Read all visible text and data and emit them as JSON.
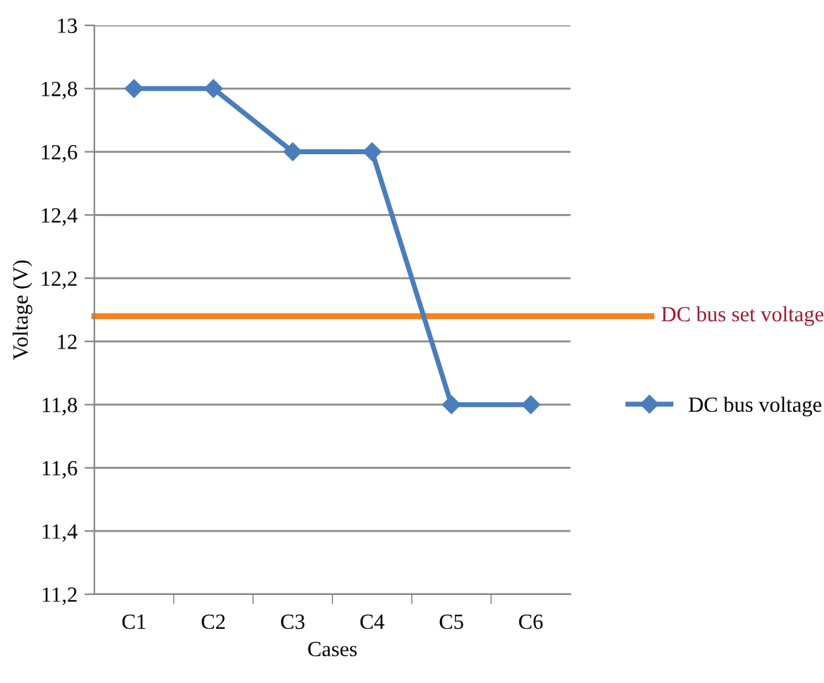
{
  "chart_data": {
    "type": "line",
    "xlabel": "Cases",
    "ylabel": "Voltage (V)",
    "categories": [
      "C1",
      "C2",
      "C3",
      "C4",
      "C5",
      "C6"
    ],
    "series": [
      {
        "name": "DC bus voltage",
        "color": "#4a7ebb",
        "values": [
          12.8,
          12.8,
          12.6,
          12.6,
          11.8,
          11.8
        ]
      }
    ],
    "ylim": [
      11.2,
      13
    ],
    "yticks": [
      {
        "value": 11.2,
        "label": "11,2"
      },
      {
        "value": 11.4,
        "label": "11,4"
      },
      {
        "value": 11.6,
        "label": "11,6"
      },
      {
        "value": 11.8,
        "label": "11,8"
      },
      {
        "value": 12,
        "label": "12"
      },
      {
        "value": 12.2,
        "label": "12,2"
      },
      {
        "value": 12.4,
        "label": "12,4"
      },
      {
        "value": 12.6,
        "label": "12,6"
      },
      {
        "value": 12.8,
        "label": "12,8"
      },
      {
        "value": 13,
        "label": "13"
      }
    ],
    "ref_lines": [
      {
        "axis": "y",
        "value": 12.08,
        "label": "DC bus set voltage",
        "color": "#f5821f"
      }
    ],
    "grid": "y",
    "legend": "right",
    "marker": "diamond",
    "line_style": "solid"
  }
}
